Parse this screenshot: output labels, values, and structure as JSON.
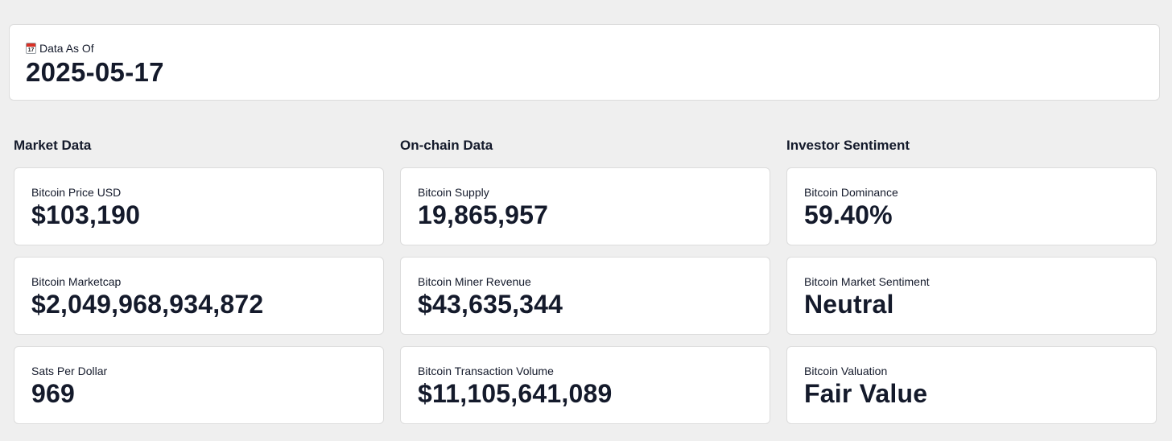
{
  "header": {
    "icon": "calendar-icon",
    "icon_day": "17",
    "label": "Data As Of",
    "date": "2025-05-17"
  },
  "sections": [
    {
      "title": "Market Data",
      "metrics": [
        {
          "label": "Bitcoin Price USD",
          "value": "$103,190"
        },
        {
          "label": "Bitcoin Marketcap",
          "value": "$2,049,968,934,872"
        },
        {
          "label": "Sats Per Dollar",
          "value": "969"
        }
      ]
    },
    {
      "title": "On-chain Data",
      "metrics": [
        {
          "label": "Bitcoin Supply",
          "value": "19,865,957"
        },
        {
          "label": "Bitcoin Miner Revenue",
          "value": "$43,635,344"
        },
        {
          "label": "Bitcoin Transaction Volume",
          "value": "$11,105,641,089"
        }
      ]
    },
    {
      "title": "Investor Sentiment",
      "metrics": [
        {
          "label": "Bitcoin Dominance",
          "value": "59.40%"
        },
        {
          "label": "Bitcoin Market Sentiment",
          "value": "Neutral"
        },
        {
          "label": "Bitcoin Valuation",
          "value": "Fair Value"
        }
      ]
    }
  ]
}
